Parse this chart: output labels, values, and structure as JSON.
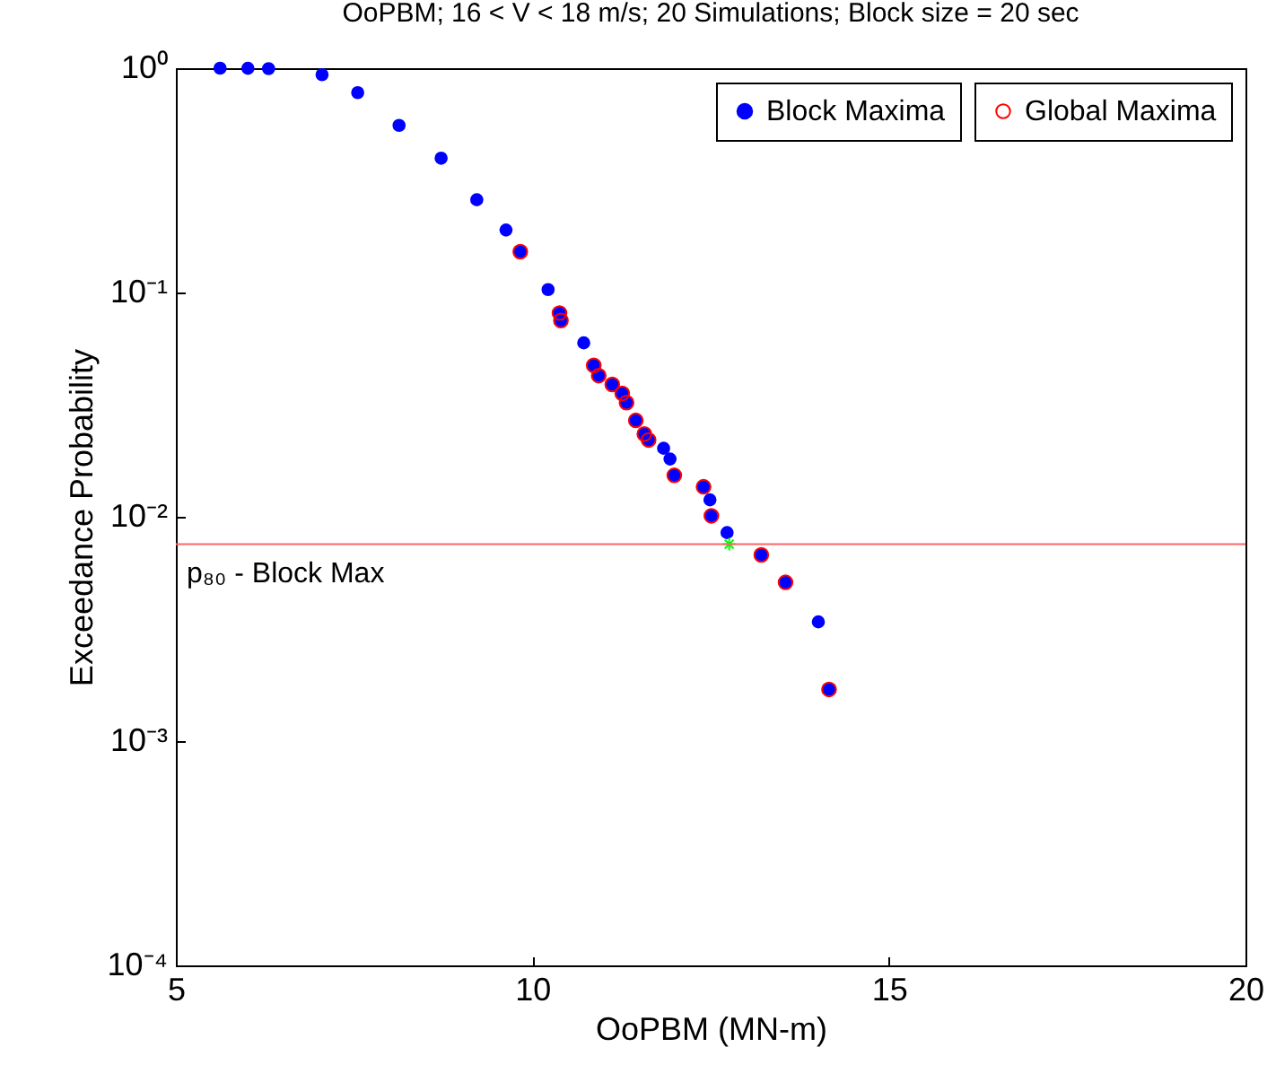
{
  "chart_data": {
    "type": "scatter",
    "title": "OoPBM; 16 < V < 18 m/s; 20 Simulations;  Block size = 20 sec",
    "xlabel": "OoPBM (MN-m)",
    "ylabel": "Exceedance Probability",
    "series": [
      {
        "name": "Block Maxima",
        "color": "#0000ff",
        "x": [
          5.62,
          6.01,
          6.3,
          7.05,
          7.55,
          8.13,
          8.72,
          9.22,
          9.63,
          9.83,
          10.22,
          10.38,
          10.4,
          10.72,
          10.86,
          10.93,
          11.12,
          11.26,
          11.32,
          11.45,
          11.57,
          11.63,
          11.84,
          11.93,
          11.99,
          12.4,
          12.49,
          12.51,
          12.73,
          13.21,
          13.55,
          14.01,
          14.16
        ],
        "values": [
          1.0,
          0.999,
          0.995,
          0.935,
          0.778,
          0.556,
          0.397,
          0.259,
          0.19,
          0.152,
          0.103,
          0.081,
          0.075,
          0.0596,
          0.0473,
          0.0426,
          0.0389,
          0.0355,
          0.0323,
          0.0269,
          0.0234,
          0.022,
          0.0202,
          0.0181,
          0.0153,
          0.0136,
          0.0119,
          0.0101,
          0.0085,
          0.00676,
          0.0051,
          0.0034,
          0.0017
        ]
      },
      {
        "name": "Global Maxima",
        "color": "#ff0000",
        "x": [
          9.83,
          10.38,
          10.4,
          10.86,
          10.93,
          11.12,
          11.26,
          11.32,
          11.45,
          11.57,
          11.63,
          11.99,
          12.4,
          12.51,
          13.21,
          13.55,
          14.16
        ],
        "values": [
          0.152,
          0.081,
          0.075,
          0.0473,
          0.0426,
          0.0389,
          0.0355,
          0.0323,
          0.0269,
          0.0234,
          0.022,
          0.0153,
          0.0136,
          0.0101,
          0.00676,
          0.0051,
          0.0017
        ]
      },
      {
        "color": "#00ff00",
        "marker": "cross",
        "x": [
          12.76
        ],
        "values": [
          0.00755
        ]
      }
    ],
    "ref_lines": [
      {
        "axis": "y",
        "value": 0.00755,
        "label": "p₈₀ - Block Max",
        "color": "#ff6666"
      }
    ],
    "xlim": [
      5,
      20
    ],
    "xticks": [
      5,
      10,
      15,
      20
    ],
    "ylim": [
      0.0001,
      1
    ],
    "yticks": [
      {
        "value": 0.0001,
        "label": "10⁻⁴"
      },
      {
        "value": 0.001,
        "label": "10⁻³"
      },
      {
        "value": 0.01,
        "label": "10⁻²"
      },
      {
        "value": 0.1,
        "label": "10⁻¹"
      },
      {
        "value": 1,
        "label": "10⁰"
      }
    ],
    "log": "y",
    "grid": false,
    "legend": "top right",
    "marker": "circle"
  }
}
